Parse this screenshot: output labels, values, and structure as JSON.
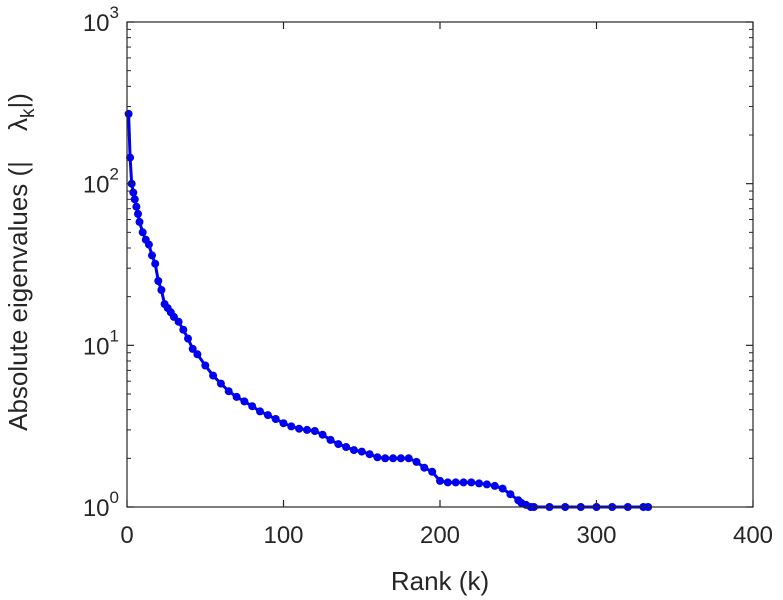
{
  "chart_data": {
    "type": "line",
    "xlabel": "Rank (k)",
    "ylabel": "Absolute eigenvalues (|λk|)",
    "ylabel_parts": {
      "prefix": "Absolute eigenvalues (|",
      "symbol": "λ",
      "subscript": "k",
      "suffix": "|)"
    },
    "xlim": [
      0,
      400
    ],
    "ylim": [
      1,
      1000
    ],
    "yscale": "log",
    "xticks": [
      {
        "value": 0,
        "label": "0"
      },
      {
        "value": 100,
        "label": "100"
      },
      {
        "value": 200,
        "label": "200"
      },
      {
        "value": 300,
        "label": "300"
      },
      {
        "value": 400,
        "label": "400"
      }
    ],
    "yticks": [
      {
        "value": 1,
        "base": "10",
        "exp": "0"
      },
      {
        "value": 10,
        "base": "10",
        "exp": "1"
      },
      {
        "value": 100,
        "base": "10",
        "exp": "2"
      },
      {
        "value": 1000,
        "base": "10",
        "exp": "3"
      }
    ],
    "grid": false,
    "series_color": "#0000ee",
    "x": [
      1,
      2,
      3,
      4,
      5,
      6,
      7,
      8,
      10,
      12,
      14,
      16,
      18,
      20,
      22,
      24,
      26,
      28,
      30,
      33,
      36,
      39,
      42,
      45,
      50,
      55,
      60,
      65,
      70,
      75,
      80,
      85,
      90,
      95,
      100,
      105,
      110,
      115,
      120,
      125,
      130,
      135,
      140,
      145,
      150,
      155,
      160,
      165,
      170,
      175,
      180,
      185,
      190,
      195,
      200,
      205,
      210,
      215,
      220,
      225,
      230,
      235,
      240,
      245,
      250,
      252,
      255,
      258,
      260,
      270,
      280,
      290,
      300,
      310,
      320,
      330,
      333
    ],
    "y": [
      270,
      145,
      100,
      88,
      80,
      72,
      65,
      58,
      50,
      45,
      42,
      36,
      32,
      25,
      22,
      18,
      17,
      16,
      15,
      14,
      12.5,
      11,
      9.5,
      8.8,
      7.5,
      6.5,
      5.8,
      5.2,
      4.8,
      4.5,
      4.2,
      3.9,
      3.7,
      3.5,
      3.3,
      3.15,
      3.05,
      3.0,
      2.95,
      2.8,
      2.6,
      2.45,
      2.35,
      2.25,
      2.2,
      2.12,
      2.03,
      2.0,
      2.0,
      2.0,
      2.0,
      1.9,
      1.75,
      1.65,
      1.45,
      1.42,
      1.42,
      1.42,
      1.42,
      1.4,
      1.38,
      1.35,
      1.3,
      1.2,
      1.1,
      1.06,
      1.03,
      1.0,
      1.0,
      1.0,
      1.0,
      1.0,
      1.0,
      1.0,
      1.0,
      1.0,
      1.0
    ]
  }
}
